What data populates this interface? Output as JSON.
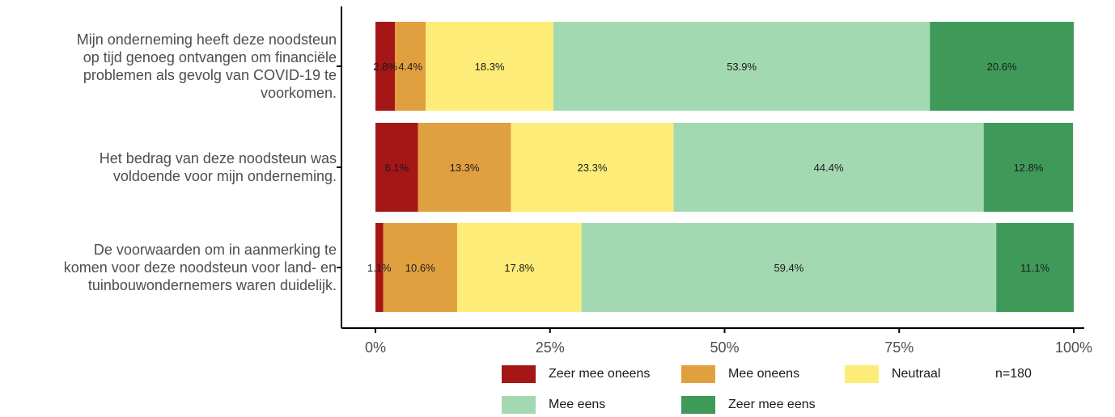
{
  "chart_data": {
    "type": "bar",
    "orientation": "horizontal",
    "stacked": true,
    "categories": [
      "Mijn onderneming heeft deze noodsteun op tijd genoeg ontvangen om financiële problemen als gevolg van COVID-19 te voorkomen.",
      "Het bedrag van deze noodsteun was voldoende voor mijn onderneming.",
      "De voorwaarden om in aanmerking te komen voor deze noodsteun voor land- en tuinbouwondernemers waren duidelijk."
    ],
    "category_lines": [
      [
        "Mijn onderneming heeft deze noodsteun",
        "op tijd genoeg ontvangen om financiële",
        "problemen als gevolg van COVID-19 te",
        "voorkomen."
      ],
      [
        "Het bedrag van deze noodsteun was",
        "voldoende voor mijn onderneming."
      ],
      [
        "De voorwaarden om in aanmerking te",
        "komen voor deze noodsteun voor land- en",
        "tuinbouwondernemers waren duidelijk."
      ]
    ],
    "series": [
      {
        "name": "Zeer mee oneens",
        "color": "#a51616",
        "values": [
          2.8,
          6.1,
          1.1
        ],
        "labels": [
          "2.8%",
          "6.1%",
          "1.1%"
        ]
      },
      {
        "name": "Mee oneens",
        "color": "#e0a040",
        "values": [
          4.4,
          13.3,
          10.6
        ],
        "labels": [
          "4.4%",
          "13.3%",
          "10.6%"
        ]
      },
      {
        "name": "Neutraal",
        "color": "#fdec78",
        "values": [
          18.3,
          23.3,
          17.8
        ],
        "labels": [
          "18.3%",
          "23.3%",
          "17.8%"
        ]
      },
      {
        "name": "Mee eens",
        "color": "#a3d9b1",
        "values": [
          53.9,
          44.4,
          59.4
        ],
        "labels": [
          "53.9%",
          "44.4%",
          "59.4%"
        ]
      },
      {
        "name": "Zeer mee eens",
        "color": "#3f9a5a",
        "values": [
          20.6,
          12.8,
          11.1
        ],
        "labels": [
          "20.6%",
          "12.8%",
          "11.1%"
        ]
      }
    ],
    "x_ticks": [
      "0%",
      "25%",
      "50%",
      "75%",
      "100%"
    ],
    "x_tick_values": [
      0,
      25,
      50,
      75,
      100
    ],
    "xlim": [
      0,
      100
    ],
    "grid": false,
    "legend_position": "bottom",
    "legend_note": "n=180"
  }
}
